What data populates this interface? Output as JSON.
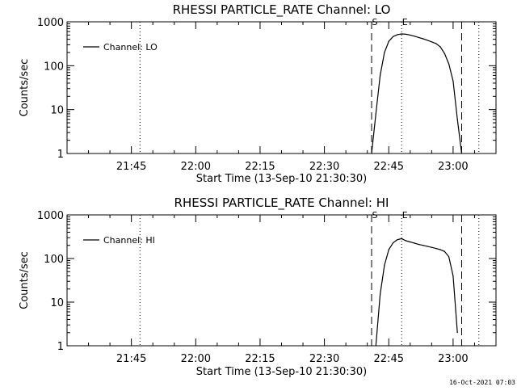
{
  "chart_data": [
    {
      "type": "line",
      "title": "RHESSI PARTICLE_RATE Channel: LO",
      "xlabel": "Start Time (13-Sep-10 21:30:30)",
      "ylabel": "Counts/sec",
      "yscale": "log",
      "ylim": [
        1,
        1000
      ],
      "xlim": [
        "21:30",
        "23:10"
      ],
      "x_ticks": [
        "21:45",
        "22:00",
        "22:15",
        "22:30",
        "22:45",
        "23:00"
      ],
      "y_ticks": [
        "1",
        "10",
        "100",
        "1000"
      ],
      "legend": {
        "label": "Channel: LO",
        "position": "top-left"
      },
      "grid": false,
      "series": [
        {
          "name": "Channel: LO",
          "x": [
            "22:41",
            "22:42",
            "22:43",
            "22:44",
            "22:45",
            "22:46",
            "22:47",
            "22:48",
            "22:49",
            "22:50",
            "22:51",
            "22:52",
            "22:53",
            "22:54",
            "22:55",
            "22:56",
            "22:57",
            "22:58",
            "22:59",
            "23:00",
            "23:01",
            "23:02"
          ],
          "y": [
            1,
            8,
            60,
            200,
            360,
            460,
            510,
            530,
            520,
            500,
            470,
            440,
            410,
            380,
            350,
            320,
            270,
            190,
            110,
            45,
            6,
            1
          ]
        }
      ],
      "vlines": [
        {
          "x": "21:47",
          "style": "dotted"
        },
        {
          "x": "22:41",
          "style": "dashed",
          "label": "S"
        },
        {
          "x": "22:48",
          "style": "dotted",
          "label": "E"
        },
        {
          "x": "23:02",
          "style": "dashed"
        },
        {
          "x": "23:06",
          "style": "dotted"
        }
      ]
    },
    {
      "type": "line",
      "title": "RHESSI PARTICLE_RATE Channel: HI",
      "xlabel": "Start Time (13-Sep-10 21:30:30)",
      "ylabel": "Counts/sec",
      "yscale": "log",
      "ylim": [
        1,
        1000
      ],
      "xlim": [
        "21:30",
        "23:10"
      ],
      "x_ticks": [
        "21:45",
        "22:00",
        "22:15",
        "22:30",
        "22:45",
        "23:00"
      ],
      "y_ticks": [
        "1",
        "10",
        "100",
        "1000"
      ],
      "legend": {
        "label": "Channel: HI",
        "position": "top-left"
      },
      "grid": false,
      "series": [
        {
          "name": "Channel: HI",
          "x": [
            "22:42",
            "22:43",
            "22:44",
            "22:45",
            "22:46",
            "22:47",
            "22:48",
            "22:49",
            "22:50",
            "22:51",
            "22:52",
            "22:53",
            "22:54",
            "22:55",
            "22:56",
            "22:57",
            "22:58",
            "22:59",
            "23:00",
            "23:01"
          ],
          "y": [
            1,
            15,
            70,
            160,
            230,
            270,
            285,
            255,
            240,
            225,
            210,
            200,
            190,
            180,
            170,
            160,
            145,
            110,
            40,
            2
          ]
        }
      ],
      "vlines": [
        {
          "x": "21:47",
          "style": "dotted"
        },
        {
          "x": "22:41",
          "style": "dashed",
          "label": "S"
        },
        {
          "x": "22:48",
          "style": "dotted",
          "label": "E"
        },
        {
          "x": "23:02",
          "style": "dashed"
        },
        {
          "x": "23:06",
          "style": "dotted"
        }
      ]
    }
  ],
  "footer": {
    "timestamp": "16-Oct-2021 07:03"
  }
}
